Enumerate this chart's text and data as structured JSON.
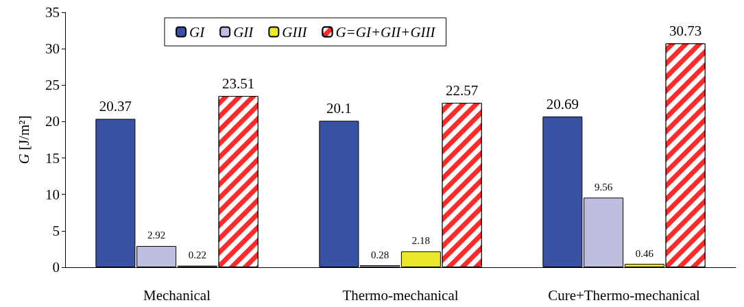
{
  "chart_data": {
    "type": "bar",
    "ylabel": "G [J/m²]",
    "categories": [
      "Mechanical",
      "Thermo-mechanical",
      "Cure+Thermo-mechanical"
    ],
    "series": [
      {
        "name": "GI",
        "color": "#3953a4",
        "values": [
          20.37,
          20.1,
          20.69
        ]
      },
      {
        "name": "GII",
        "color": "#bdbde0",
        "values": [
          2.92,
          0.28,
          9.56
        ]
      },
      {
        "name": "GIII",
        "color": "#ebe82b",
        "values": [
          0.22,
          2.18,
          0.46
        ]
      },
      {
        "name": "G=GI+GII+GIII",
        "color": "#ff2a2a",
        "values": [
          23.51,
          22.57,
          30.73
        ]
      }
    ],
    "ylim": [
      0,
      35
    ],
    "yticks": [
      0,
      5,
      10,
      15,
      20,
      25,
      30,
      35
    ],
    "data_labels": true,
    "grid": false,
    "legend": "top"
  }
}
